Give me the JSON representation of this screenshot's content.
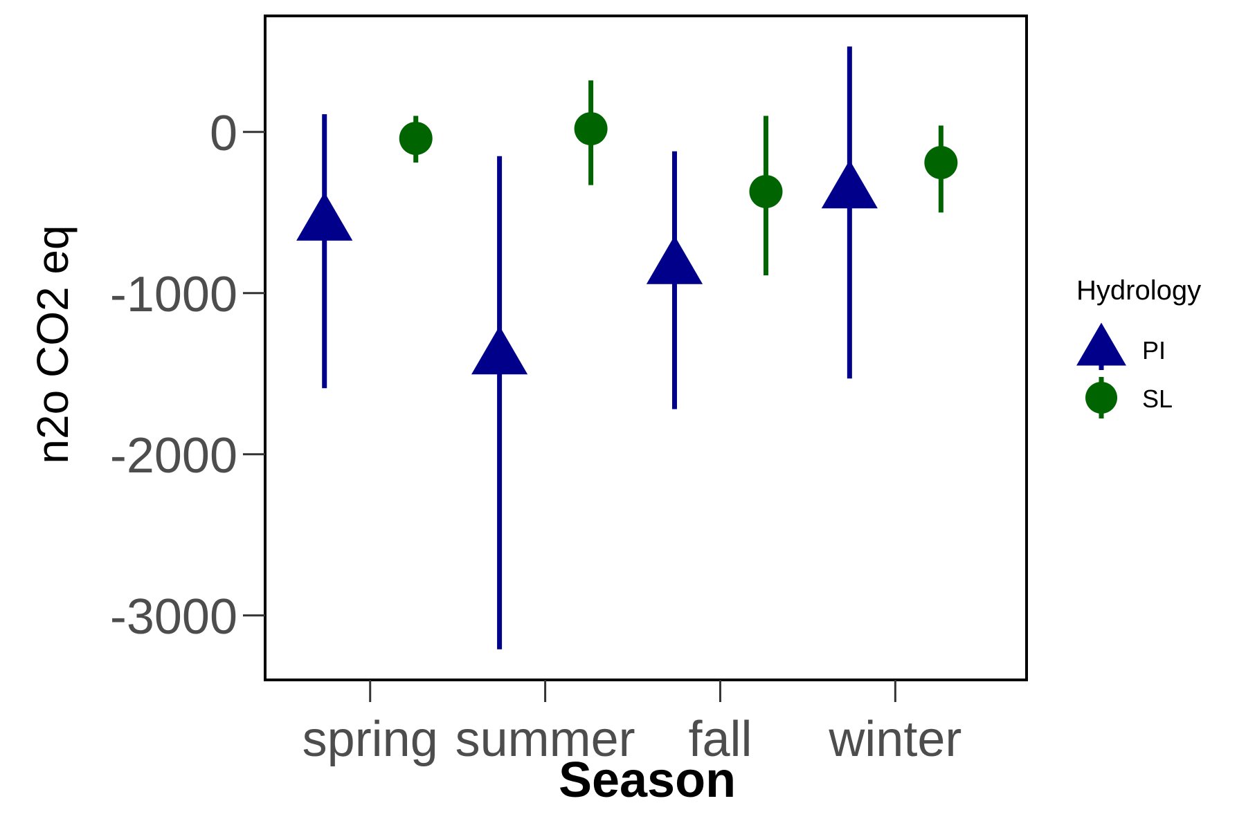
{
  "chart_data": {
    "type": "scatter",
    "subtype": "point-range (mean with error bars), dodged by group",
    "xlabel": "Season",
    "ylabel": "n2o CO2 eq",
    "categories": [
      "spring",
      "summer",
      "fall",
      "winter"
    ],
    "y_ticks": [
      0,
      -1000,
      -2000,
      -3000
    ],
    "y_tick_labels": [
      "0",
      "-1000",
      "-2000",
      "-3000"
    ],
    "ylim": [
      -3400,
      720
    ],
    "grid": false,
    "legend": {
      "title": "Hydrology",
      "placement": "right",
      "entries": [
        "PI",
        "SL"
      ]
    },
    "series": [
      {
        "name": "PI",
        "shape": "triangle",
        "color": "#00008B",
        "values": [
          -560,
          -1390,
          -830,
          -360
        ],
        "lower": [
          -1590,
          -3210,
          -1720,
          -1530
        ],
        "upper": [
          110,
          -150,
          -120,
          530
        ]
      },
      {
        "name": "SL",
        "shape": "circle",
        "color": "#006400",
        "values": [
          -40,
          20,
          -370,
          -190
        ],
        "lower": [
          -190,
          -330,
          -890,
          -500
        ],
        "upper": [
          100,
          320,
          100,
          40
        ]
      }
    ]
  }
}
